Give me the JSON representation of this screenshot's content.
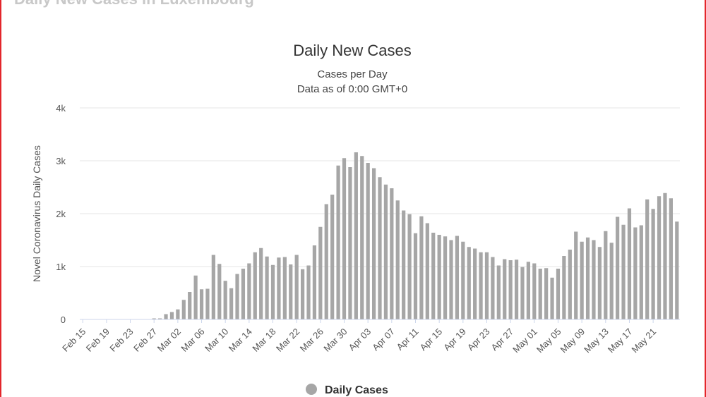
{
  "page": {
    "top_heading": "Daily New Cases in Luxembourg"
  },
  "chart_data": {
    "type": "bar",
    "title": "Daily New Cases",
    "subtitle_lines": [
      "Cases per Day",
      "Data as of 0:00 GMT+0"
    ],
    "ylabel": "Novel Coronavirus Daily Cases",
    "xlabel": "",
    "ylim": [
      0,
      4000
    ],
    "y_ticks": [
      0,
      1000,
      2000,
      3000,
      4000
    ],
    "y_tick_labels": [
      "0",
      "1k",
      "2k",
      "3k",
      "4k"
    ],
    "x_tick_labels": [
      "Feb 15",
      "Feb 19",
      "Feb 23",
      "Feb 27",
      "Mar 02",
      "Mar 06",
      "Mar 10",
      "Mar 14",
      "Mar 18",
      "Mar 22",
      "Mar 26",
      "Mar 30",
      "Apr 03",
      "Apr 07",
      "Apr 11",
      "Apr 15",
      "Apr 19",
      "Apr 23",
      "Apr 27",
      "May 01",
      "May 05",
      "May 09",
      "May 13",
      "May 17",
      "May 21"
    ],
    "x_tick_every": 4,
    "grid": true,
    "legend_position": "bottom-center",
    "series": [
      {
        "name": "Daily Cases",
        "color": "#a6a6a6",
        "start_label": "Feb 15",
        "values": [
          0,
          0,
          0,
          0,
          0,
          0,
          0,
          0,
          0,
          0,
          0,
          0,
          20,
          20,
          100,
          140,
          190,
          370,
          520,
          830,
          570,
          580,
          1220,
          1050,
          730,
          590,
          860,
          960,
          1060,
          1270,
          1350,
          1190,
          1030,
          1170,
          1180,
          1040,
          1220,
          950,
          1020,
          1400,
          1750,
          2180,
          2360,
          2910,
          3050,
          2880,
          3160,
          3090,
          2960,
          2860,
          2690,
          2550,
          2480,
          2250,
          2060,
          1990,
          1630,
          1950,
          1820,
          1640,
          1600,
          1570,
          1500,
          1580,
          1470,
          1370,
          1340,
          1270,
          1270,
          1180,
          1020,
          1140,
          1120,
          1130,
          990,
          1090,
          1060,
          960,
          970,
          790,
          960,
          1200,
          1320,
          1660,
          1470,
          1550,
          1500,
          1370,
          1670,
          1450,
          1940,
          1790,
          2100,
          1740,
          1780,
          2270,
          2090,
          2330,
          2390,
          2290,
          1850
        ]
      }
    ]
  }
}
